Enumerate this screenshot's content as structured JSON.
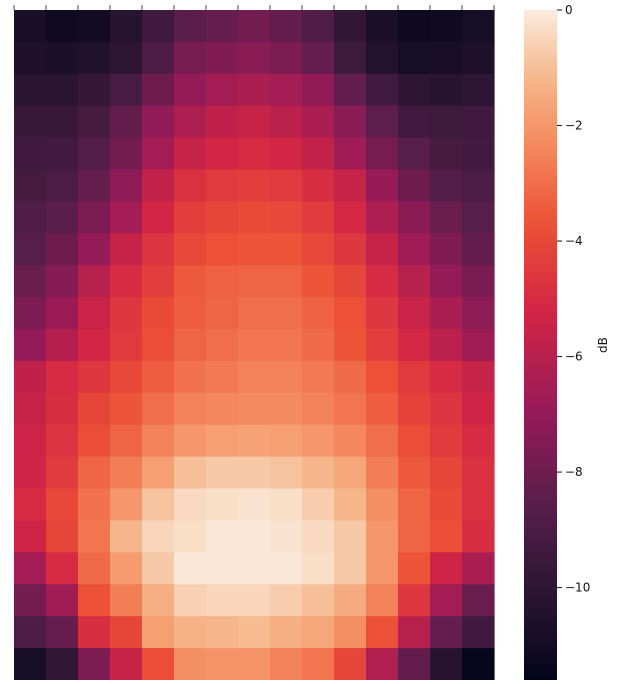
{
  "chart_data": {
    "type": "heatmap",
    "title": "",
    "xlabel": "",
    "ylabel": "",
    "colorbar": {
      "label": "dB",
      "range": [
        -11.6,
        0
      ],
      "ticks": [
        0,
        -2,
        -4,
        -6,
        -8,
        -10
      ],
      "tick_labels": [
        "0",
        "−2",
        "−4",
        "−6",
        "−8",
        "−10"
      ],
      "colormap": "rocket"
    },
    "rows": 21,
    "cols": 15,
    "matrix": [
      [
        -10.8,
        -11.1,
        -11.0,
        -10.3,
        -9.4,
        -8.5,
        -8.2,
        -7.9,
        -8.3,
        -8.8,
        -9.9,
        -10.7,
        -11.2,
        -11.1,
        -10.9
      ],
      [
        -10.6,
        -10.7,
        -10.5,
        -10.0,
        -8.9,
        -7.8,
        -7.5,
        -7.3,
        -7.6,
        -8.2,
        -9.5,
        -10.4,
        -10.9,
        -10.8,
        -10.6
      ],
      [
        -10.1,
        -10.1,
        -9.7,
        -9.1,
        -8.0,
        -7.0,
        -6.6,
        -6.4,
        -6.6,
        -7.1,
        -8.3,
        -9.3,
        -10.0,
        -10.2,
        -10.0
      ],
      [
        -9.6,
        -9.6,
        -9.2,
        -8.3,
        -7.1,
        -6.3,
        -5.8,
        -5.6,
        -5.9,
        -6.4,
        -7.3,
        -8.4,
        -9.3,
        -9.5,
        -9.4
      ],
      [
        -9.4,
        -9.3,
        -8.7,
        -7.9,
        -6.6,
        -5.6,
        -5.2,
        -5.0,
        -5.2,
        -5.7,
        -6.7,
        -7.8,
        -8.6,
        -9.2,
        -9.3
      ],
      [
        -9.2,
        -9.0,
        -8.2,
        -7.2,
        -5.7,
        -4.8,
        -4.5,
        -4.3,
        -4.5,
        -4.9,
        -5.6,
        -6.9,
        -8.0,
        -8.7,
        -9.0
      ],
      [
        -8.8,
        -8.5,
        -7.6,
        -6.6,
        -5.2,
        -4.3,
        -4.1,
        -3.9,
        -4.0,
        -4.4,
        -5.1,
        -6.3,
        -7.3,
        -8.1,
        -8.6
      ],
      [
        -8.6,
        -8.0,
        -7.0,
        -5.6,
        -4.7,
        -4.0,
        -3.7,
        -3.6,
        -3.6,
        -4.0,
        -4.6,
        -5.6,
        -6.7,
        -7.5,
        -8.3
      ],
      [
        -8.1,
        -7.4,
        -6.0,
        -5.0,
        -4.3,
        -3.5,
        -3.3,
        -3.2,
        -3.2,
        -3.6,
        -4.1,
        -5.0,
        -6.0,
        -7.0,
        -7.7
      ],
      [
        -7.6,
        -6.8,
        -5.5,
        -4.6,
        -3.9,
        -3.4,
        -3.2,
        -3.0,
        -3.0,
        -3.3,
        -3.7,
        -4.6,
        -5.5,
        -6.4,
        -7.2
      ],
      [
        -7.0,
        -6.1,
        -5.2,
        -4.5,
        -3.8,
        -3.2,
        -3.0,
        -2.8,
        -2.8,
        -3.1,
        -3.6,
        -4.3,
        -5.1,
        -5.9,
        -6.7
      ],
      [
        -5.8,
        -5.0,
        -4.6,
        -4.0,
        -3.4,
        -2.9,
        -2.7,
        -2.5,
        -2.5,
        -2.7,
        -3.1,
        -3.7,
        -4.5,
        -5.0,
        -5.6
      ],
      [
        -5.6,
        -4.9,
        -4.1,
        -3.6,
        -3.0,
        -2.5,
        -2.4,
        -2.3,
        -2.3,
        -2.5,
        -2.8,
        -3.4,
        -4.2,
        -4.7,
        -5.3
      ],
      [
        -5.4,
        -4.7,
        -3.8,
        -3.2,
        -2.5,
        -2.0,
        -1.8,
        -1.7,
        -1.8,
        -2.0,
        -2.4,
        -3.0,
        -3.8,
        -4.4,
        -5.0
      ],
      [
        -5.3,
        -4.4,
        -3.2,
        -2.6,
        -1.8,
        -1.0,
        -0.8,
        -0.8,
        -0.9,
        -1.2,
        -1.6,
        -2.6,
        -3.5,
        -4.1,
        -4.8
      ],
      [
        -5.0,
        -4.0,
        -2.9,
        -2.0,
        -0.9,
        -0.4,
        -0.3,
        -0.2,
        -0.3,
        -0.7,
        -1.2,
        -2.2,
        -3.2,
        -3.9,
        -4.8
      ],
      [
        -5.3,
        -4.1,
        -2.8,
        -1.2,
        -0.5,
        -0.3,
        -0.1,
        -0.1,
        -0.2,
        -0.4,
        -0.8,
        -2.0,
        -3.2,
        -3.8,
        -4.9
      ],
      [
        -6.6,
        -5.0,
        -3.1,
        -1.9,
        -0.8,
        -0.1,
        -0.1,
        -0.1,
        -0.1,
        -0.3,
        -0.8,
        -2.0,
        -3.6,
        -5.3,
        -6.4
      ],
      [
        -7.9,
        -6.7,
        -3.7,
        -2.6,
        -1.4,
        -0.6,
        -0.5,
        -0.5,
        -0.7,
        -1.0,
        -1.5,
        -2.5,
        -4.6,
        -6.6,
        -8.1
      ],
      [
        -8.9,
        -8.2,
        -4.9,
        -4.1,
        -1.8,
        -1.3,
        -1.2,
        -1.1,
        -1.4,
        -1.6,
        -2.2,
        -3.7,
        -6.0,
        -8.2,
        -9.4
      ],
      [
        -10.9,
        -9.9,
        -7.6,
        -5.6,
        -3.8,
        -2.2,
        -2.1,
        -2.1,
        -2.5,
        -2.8,
        -4.1,
        -6.2,
        -8.3,
        -10.2,
        -11.5
      ]
    ]
  }
}
